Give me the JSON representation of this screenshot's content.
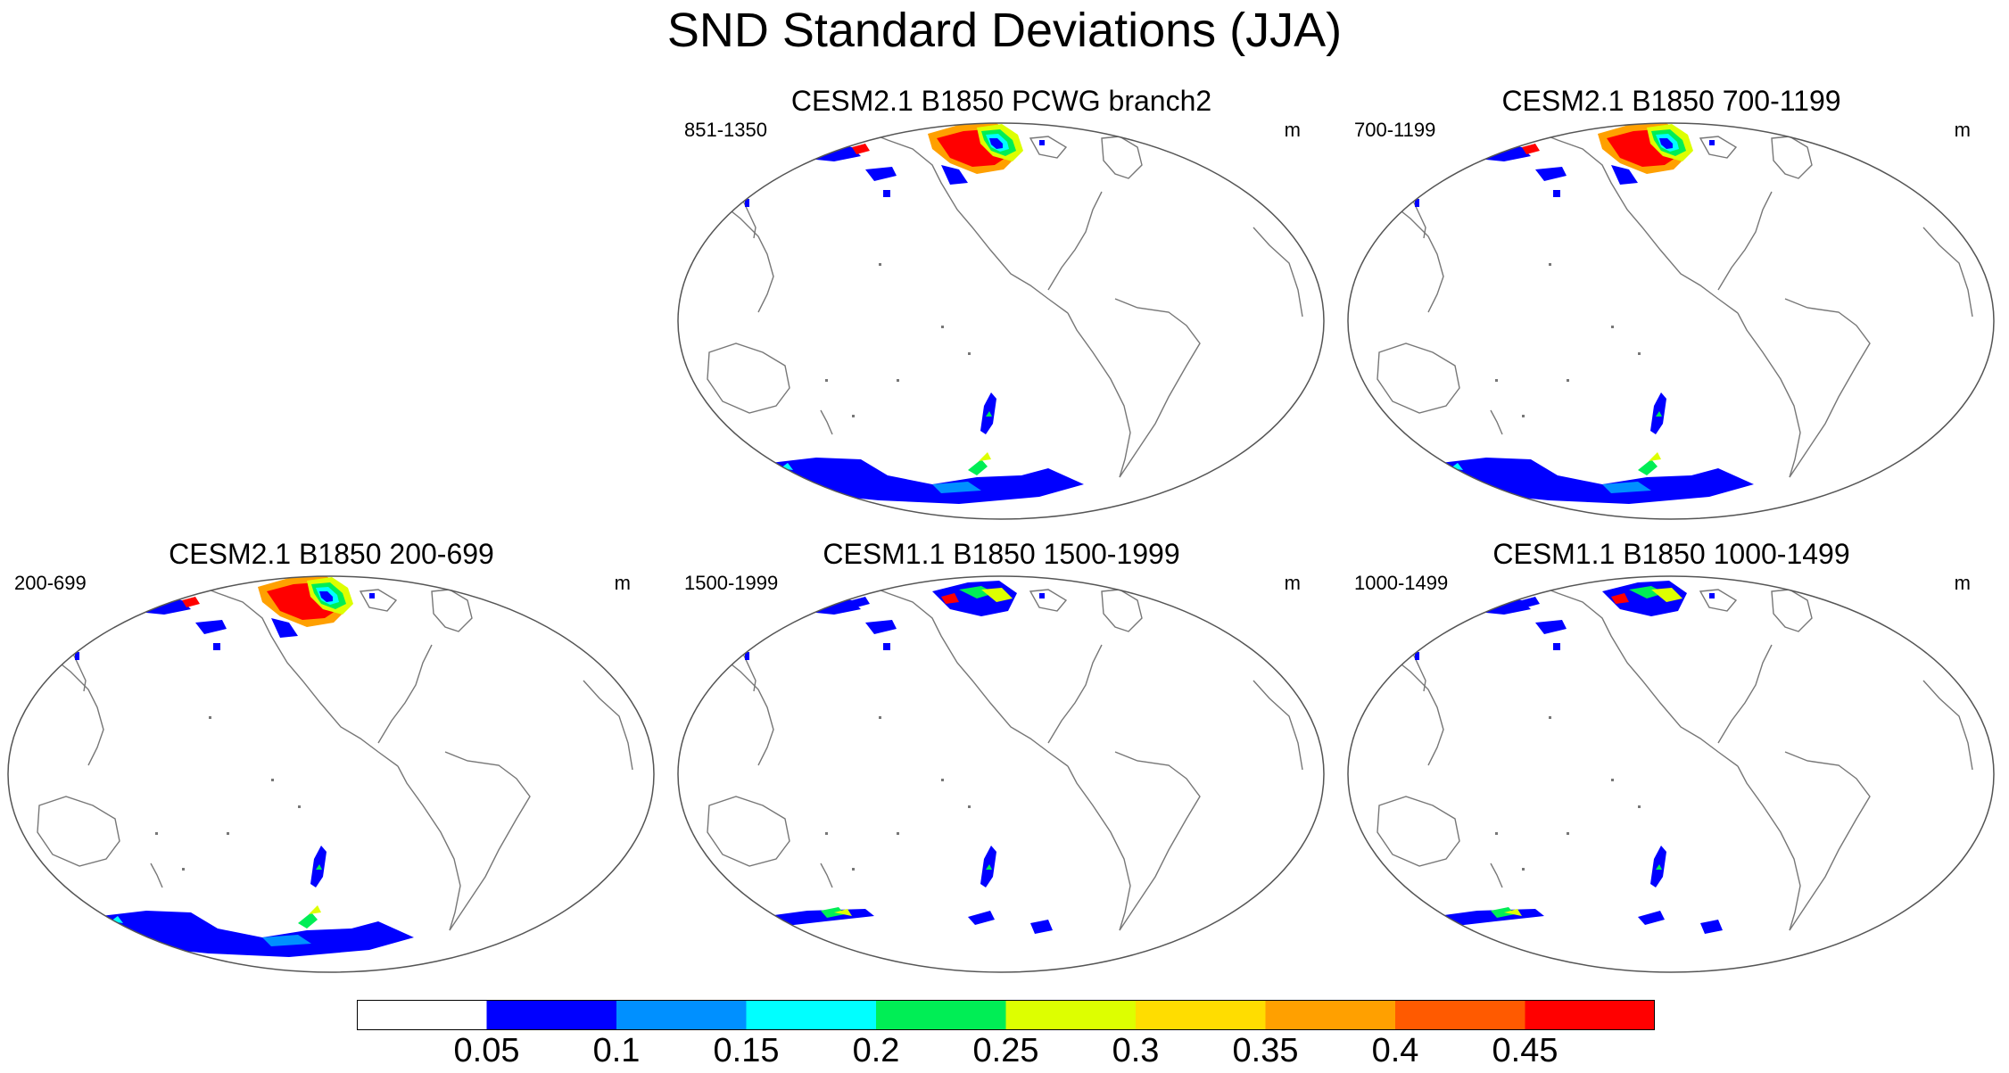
{
  "title": "SND Standard Deviations (JJA)",
  "panels": [
    {
      "title": "CESM2.1 B1850 PCWG branch2",
      "years": "851-1350",
      "units": "m",
      "pattern": "strong"
    },
    {
      "title": "CESM2.1 B1850 700-1199",
      "years": "700-1199",
      "units": "m",
      "pattern": "strong"
    },
    {
      "title": "CESM2.1 B1850 200-699",
      "years": "200-699",
      "units": "m",
      "pattern": "strong"
    },
    {
      "title": "CESM1.1 B1850 1500-1999",
      "years": "1500-1999",
      "units": "m",
      "pattern": "weak"
    },
    {
      "title": "CESM1.1 B1850 1000-1499",
      "years": "1000-1499",
      "units": "m",
      "pattern": "weak"
    }
  ],
  "colorbar": {
    "labels": [
      "0.05",
      "0.1",
      "0.15",
      "0.2",
      "0.25",
      "0.3",
      "0.35",
      "0.4",
      "0.45"
    ],
    "colors": [
      "#ffffff",
      "#0000ff",
      "#0090ff",
      "#00ffff",
      "#00ee55",
      "#ddff00",
      "#ffdd00",
      "#ffa000",
      "#ff5a00",
      "#ff0000"
    ]
  }
}
